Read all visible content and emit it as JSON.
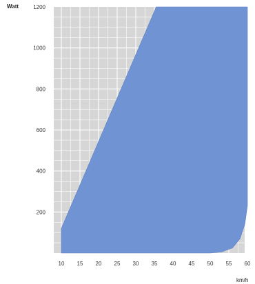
{
  "chart_data": {
    "type": "area",
    "title": "",
    "xlabel": "km/h",
    "ylabel": "Watt",
    "xlim": [
      10,
      60
    ],
    "ylim": [
      0,
      1200
    ],
    "x_ticks": [
      10,
      15,
      20,
      25,
      30,
      35,
      40,
      45,
      50,
      55,
      60
    ],
    "x_tick_labels": [
      "10",
      "15",
      "20",
      "25",
      "30",
      "35",
      "40",
      "45",
      "50",
      "55",
      "60"
    ],
    "y_ticks": [
      200,
      400,
      600,
      800,
      1000,
      1200
    ],
    "y_tick_labels": [
      "200",
      "400",
      "600",
      "800",
      "1000",
      "1200"
    ],
    "grid": true,
    "legend": "none",
    "colors": {
      "area": "#6f93d3",
      "background": "#d6d6d6",
      "grid": "#ffffff"
    },
    "series": [
      {
        "upper_boundary": [
          {
            "x": 10,
            "y": 0
          },
          {
            "x": 10,
            "y": 120
          },
          {
            "x": 35.5,
            "y": 1200
          },
          {
            "x": 60,
            "y": 1200
          }
        ],
        "lower_boundary": [
          {
            "x": 10,
            "y": 0
          },
          {
            "x": 50,
            "y": 0
          },
          {
            "x": 53,
            "y": 5
          },
          {
            "x": 56,
            "y": 25
          },
          {
            "x": 58,
            "y": 70
          },
          {
            "x": 59.3,
            "y": 140
          },
          {
            "x": 60,
            "y": 230
          },
          {
            "x": 60,
            "y": 1200
          }
        ]
      }
    ]
  }
}
